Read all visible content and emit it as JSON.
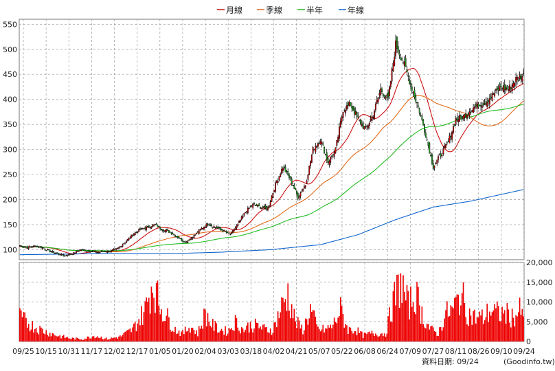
{
  "chart_data": {
    "type": "candlestick",
    "legend": [
      {
        "label": "月線",
        "color": "#cc1111"
      },
      {
        "label": "季線",
        "color": "#e06a1a"
      },
      {
        "label": "半年",
        "color": "#22bb22"
      },
      {
        "label": "年線",
        "color": "#1166cc"
      }
    ],
    "y_price_ticks": [
      100,
      150,
      200,
      250,
      300,
      350,
      400,
      450,
      500,
      550
    ],
    "y_price_range": [
      80,
      560
    ],
    "y_volume_ticks": [
      "0",
      "5,000",
      "10,000",
      "15,000",
      "20,000"
    ],
    "y_volume_range": [
      0,
      20000
    ],
    "x_labels": [
      "09/25",
      "10/15",
      "10/31",
      "11/17",
      "12/02",
      "12/17",
      "01/05",
      "01/20",
      "02/04",
      "03/03",
      "03/18",
      "04/02",
      "04/21",
      "05/07",
      "05/22",
      "06/08",
      "06/24",
      "07/09",
      "07/27",
      "08/11",
      "08/26",
      "09/10",
      "09/24"
    ],
    "date_note": "資料日期: 09/24",
    "source": "(Goodinfo.tw)",
    "close_keypoints": [
      [
        0,
        108
      ],
      [
        6,
        104
      ],
      [
        12,
        107
      ],
      [
        18,
        104
      ],
      [
        24,
        97
      ],
      [
        30,
        92
      ],
      [
        36,
        88
      ],
      [
        42,
        92
      ],
      [
        48,
        100
      ],
      [
        54,
        98
      ],
      [
        60,
        95
      ],
      [
        66,
        96
      ],
      [
        72,
        97
      ],
      [
        78,
        102
      ],
      [
        84,
        115
      ],
      [
        90,
        130
      ],
      [
        96,
        140
      ],
      [
        102,
        145
      ],
      [
        108,
        150
      ],
      [
        114,
        140
      ],
      [
        120,
        135
      ],
      [
        126,
        125
      ],
      [
        132,
        115
      ],
      [
        138,
        125
      ],
      [
        144,
        140
      ],
      [
        150,
        152
      ],
      [
        156,
        145
      ],
      [
        162,
        138
      ],
      [
        168,
        130
      ],
      [
        174,
        150
      ],
      [
        180,
        175
      ],
      [
        186,
        190
      ],
      [
        192,
        185
      ],
      [
        198,
        182
      ],
      [
        204,
        230
      ],
      [
        210,
        265
      ],
      [
        216,
        240
      ],
      [
        222,
        205
      ],
      [
        228,
        230
      ],
      [
        234,
        300
      ],
      [
        240,
        320
      ],
      [
        246,
        275
      ],
      [
        252,
        300
      ],
      [
        258,
        380
      ],
      [
        264,
        390
      ],
      [
        270,
        360
      ],
      [
        276,
        340
      ],
      [
        282,
        370
      ],
      [
        288,
        420
      ],
      [
        294,
        400
      ],
      [
        300,
        510
      ],
      [
        306,
        475
      ],
      [
        312,
        430
      ],
      [
        318,
        385
      ],
      [
        324,
        330
      ],
      [
        330,
        265
      ],
      [
        336,
        290
      ],
      [
        342,
        315
      ],
      [
        348,
        360
      ],
      [
        354,
        365
      ],
      [
        360,
        380
      ],
      [
        366,
        390
      ],
      [
        372,
        395
      ],
      [
        378,
        410
      ],
      [
        384,
        425
      ],
      [
        390,
        420
      ],
      [
        396,
        440
      ],
      [
        402,
        448
      ]
    ],
    "volume_keypoints": [
      [
        0,
        6000
      ],
      [
        10,
        4000
      ],
      [
        20,
        2500
      ],
      [
        30,
        1500
      ],
      [
        40,
        800
      ],
      [
        50,
        600
      ],
      [
        60,
        1500
      ],
      [
        70,
        600
      ],
      [
        80,
        1200
      ],
      [
        90,
        3000
      ],
      [
        100,
        8000
      ],
      [
        106,
        15000
      ],
      [
        112,
        9000
      ],
      [
        118,
        6000
      ],
      [
        124,
        3000
      ],
      [
        130,
        2000
      ],
      [
        136,
        4000
      ],
      [
        142,
        2000
      ],
      [
        148,
        7000
      ],
      [
        154,
        4000
      ],
      [
        160,
        3000
      ],
      [
        166,
        2500
      ],
      [
        172,
        5000
      ],
      [
        178,
        3000
      ],
      [
        184,
        4000
      ],
      [
        190,
        4000
      ],
      [
        196,
        3000
      ],
      [
        202,
        3000
      ],
      [
        208,
        8000
      ],
      [
        214,
        12000
      ],
      [
        220,
        5000
      ],
      [
        226,
        3000
      ],
      [
        232,
        8000
      ],
      [
        238,
        3000
      ],
      [
        244,
        3000
      ],
      [
        250,
        4000
      ],
      [
        256,
        8000
      ],
      [
        262,
        3000
      ],
      [
        268,
        3000
      ],
      [
        274,
        1500
      ],
      [
        280,
        2000
      ],
      [
        286,
        2000
      ],
      [
        292,
        2000
      ],
      [
        298,
        10000
      ],
      [
        304,
        15000
      ],
      [
        310,
        9000
      ],
      [
        316,
        12000
      ],
      [
        322,
        6000
      ],
      [
        328,
        3000
      ],
      [
        334,
        2000
      ],
      [
        340,
        7000
      ],
      [
        346,
        8000
      ],
      [
        352,
        12000
      ],
      [
        358,
        7000
      ],
      [
        364,
        6000
      ],
      [
        370,
        6000
      ],
      [
        376,
        8000
      ],
      [
        382,
        7000
      ],
      [
        388,
        7000
      ],
      [
        394,
        6000
      ],
      [
        400,
        8000
      ],
      [
        402,
        5000
      ]
    ],
    "ma_specs": [
      {
        "label": "月線",
        "period": 20
      },
      {
        "label": "季線",
        "period": 60
      },
      {
        "label": "半年",
        "period": 120
      }
    ],
    "year_line_keypoints": [
      [
        0,
        90
      ],
      [
        60,
        92
      ],
      [
        120,
        92
      ],
      [
        160,
        95
      ],
      [
        200,
        100
      ],
      [
        240,
        110
      ],
      [
        270,
        130
      ],
      [
        300,
        160
      ],
      [
        330,
        185
      ],
      [
        360,
        197
      ],
      [
        402,
        220
      ]
    ]
  }
}
